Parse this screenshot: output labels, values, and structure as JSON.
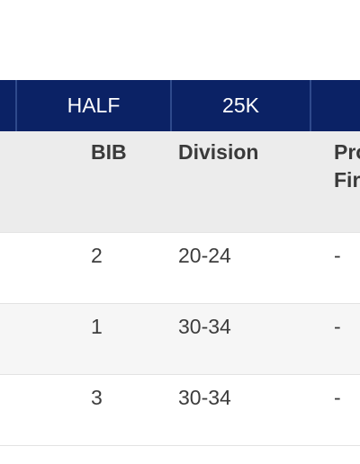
{
  "tabs": [
    {
      "label": ""
    },
    {
      "label": "HALF"
    },
    {
      "label": "25K"
    },
    {
      "label": ""
    }
  ],
  "table": {
    "columns": {
      "bib": "BIB",
      "division": "Division",
      "prev_first": "Pro",
      "prev_second": "Fir"
    },
    "rows": [
      {
        "bib": "2",
        "division": "20-24",
        "prev": "-"
      },
      {
        "bib": "1",
        "division": "30-34",
        "prev": "-"
      },
      {
        "bib": "3",
        "division": "30-34",
        "prev": "-"
      }
    ]
  }
}
